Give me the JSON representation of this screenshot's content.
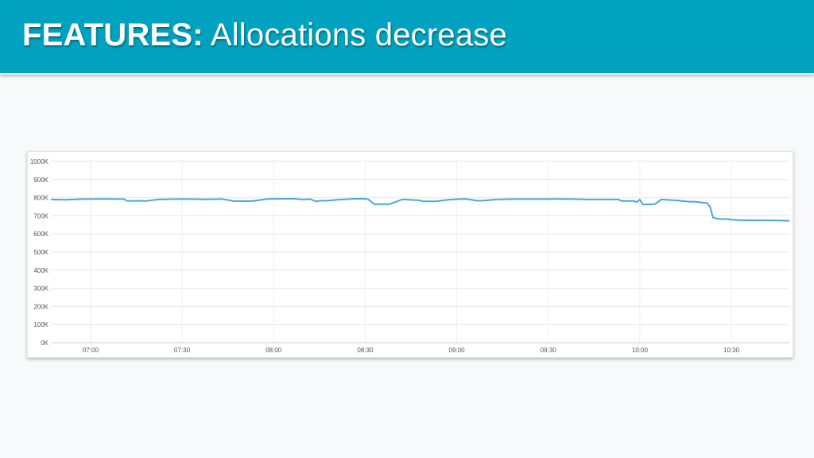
{
  "header": {
    "title_bold": "FEATURES:",
    "title_rest": " Allocations decrease",
    "bg_color": "#01a2bf"
  },
  "chart_data": {
    "type": "line",
    "title": "",
    "xlabel": "",
    "ylabel": "",
    "ylim": [
      0,
      1000
    ],
    "y_unit": "K",
    "yticks": [
      0,
      100,
      200,
      300,
      400,
      500,
      600,
      700,
      800,
      900,
      1000
    ],
    "ytick_labels": [
      "0K",
      "100K",
      "200K",
      "300K",
      "400K",
      "500K",
      "600K",
      "700K",
      "800K",
      "900K",
      "1000K"
    ],
    "xlim": [
      "06:47",
      "10:49"
    ],
    "xticks": [
      "07:00",
      "07:30",
      "08:00",
      "08:30",
      "09:00",
      "09:30",
      "10:00",
      "10:30"
    ],
    "grid": true,
    "legend": "none",
    "line_color": "#46a8d8",
    "series": [
      {
        "x": [
          "06:47",
          "06:52",
          "06:57",
          "07:02",
          "07:07",
          "07:11",
          "07:12",
          "07:16",
          "07:18",
          "07:22",
          "07:27",
          "07:32",
          "07:37",
          "07:42",
          "07:43",
          "07:47",
          "07:49",
          "07:53",
          "07:58",
          "08:03",
          "08:07",
          "08:08",
          "08:08",
          "08:10",
          "08:12",
          "08:14",
          "08:15",
          "08:17",
          "08:22",
          "08:25",
          "08:26",
          "08:30",
          "08:31",
          "08:33",
          "08:38",
          "08:42",
          "08:43",
          "08:48",
          "08:49",
          "08:53",
          "08:58",
          "09:02",
          "09:03",
          "09:07",
          "09:08",
          "09:13",
          "09:18",
          "09:23",
          "09:28",
          "09:33",
          "09:38",
          "09:43",
          "09:48",
          "09:53",
          "09:54",
          "09:58",
          "09:59",
          "10:00",
          "10:01",
          "10:05",
          "10:07",
          "10:12",
          "10:16",
          "10:18",
          "10:22",
          "10:23",
          "10:24",
          "10:26",
          "10:28",
          "10:29",
          "10:30",
          "10:35",
          "10:40",
          "10:44",
          "10:49"
        ],
        "y": [
          790,
          788,
          792,
          793,
          793,
          792,
          782,
          783,
          781,
          790,
          792,
          792,
          791,
          792,
          793,
          781,
          781,
          781,
          793,
          794,
          794,
          792,
          792,
          790,
          792,
          779,
          783,
          783,
          790,
          792,
          794,
          794,
          791,
          764,
          764,
          790,
          790,
          785,
          780,
          780,
          790,
          793,
          793,
          783,
          783,
          790,
          792,
          792,
          792,
          793,
          792,
          790,
          790,
          790,
          782,
          782,
          775,
          790,
          762,
          765,
          790,
          785,
          778,
          778,
          770,
          750,
          690,
          682,
          682,
          682,
          678,
          675,
          675,
          674,
          673
        ]
      }
    ]
  }
}
